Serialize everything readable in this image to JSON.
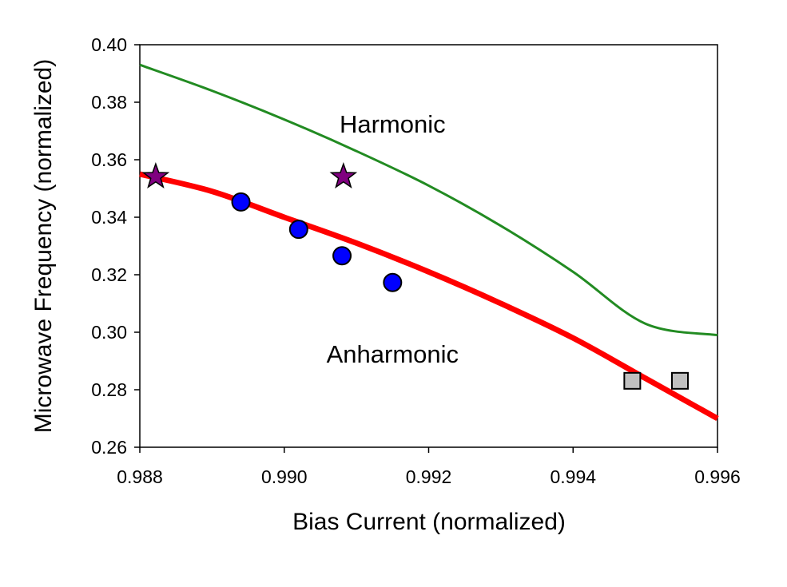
{
  "chart_data": {
    "type": "scatter",
    "title": "",
    "xlabel": "Bias Current  (normalized)",
    "ylabel": "Microwave Frequency  (normalized)",
    "xlim": [
      0.988,
      0.996
    ],
    "ylim": [
      0.26,
      0.4
    ],
    "xticks": [
      0.988,
      0.99,
      0.992,
      0.994,
      0.996
    ],
    "xtick_labels": [
      "0.988",
      "0.990",
      "0.992",
      "0.994",
      "0.996"
    ],
    "yticks": [
      0.26,
      0.28,
      0.3,
      0.32,
      0.34,
      0.36,
      0.38,
      0.4
    ],
    "ytick_labels": [
      "0.26",
      "0.28",
      "0.30",
      "0.32",
      "0.34",
      "0.36",
      "0.38",
      "0.40"
    ],
    "grid": false,
    "legend": "none",
    "annotations": [
      {
        "text": "Harmonic",
        "x": 0.9915,
        "y": 0.3695
      },
      {
        "text": "Anharmonic",
        "x": 0.9915,
        "y": 0.2895
      }
    ],
    "series": [
      {
        "type": "line",
        "color": "#228B22",
        "x": [
          0.988,
          0.989,
          0.99,
          0.991,
          0.992,
          0.993,
          0.994,
          0.995,
          0.996
        ],
        "y": [
          0.393,
          0.384,
          0.374,
          0.363,
          0.351,
          0.337,
          0.321,
          0.303,
          0.299
        ]
      },
      {
        "type": "line",
        "color": "#ff0000",
        "x": [
          0.988,
          0.989,
          0.99,
          0.991,
          0.992,
          0.993,
          0.994,
          0.995,
          0.9955,
          0.996
        ],
        "y": [
          0.355,
          0.349,
          0.34,
          0.331,
          0.321,
          0.31,
          0.298,
          0.284,
          0.277,
          0.27
        ]
      },
      {
        "type": "scatter",
        "marker": "circle",
        "color": "#0000ff",
        "x": [
          0.9894,
          0.9902,
          0.9908,
          0.9915
        ],
        "y": [
          0.3453,
          0.3358,
          0.3266,
          0.3173
        ]
      },
      {
        "type": "scatter",
        "marker": "star",
        "color": "#800080",
        "x": [
          0.98822,
          0.99082
        ],
        "y": [
          0.3541,
          0.3541
        ]
      },
      {
        "type": "scatter",
        "marker": "square",
        "color": "#c0c0c0",
        "x": [
          0.99482,
          0.99548
        ],
        "y": [
          0.2831,
          0.2831
        ]
      }
    ]
  }
}
